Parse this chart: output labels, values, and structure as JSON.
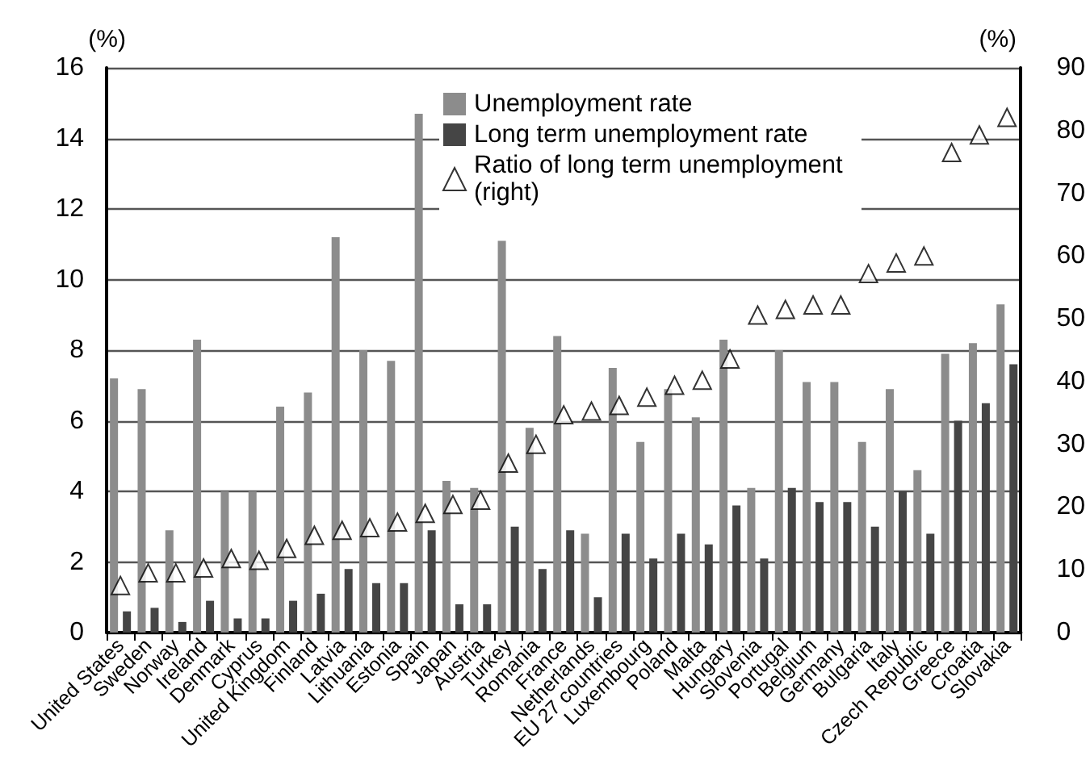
{
  "chart_data": {
    "type": "bar",
    "ylabel": "(%)",
    "y2label": "(%)",
    "categories": [
      "United States",
      "Sweden",
      "Norway",
      "Ireland",
      "Denmark",
      "Cyprus",
      "United Kingdom",
      "Finland",
      "Latvia",
      "Lithuania",
      "Estonia",
      "Spain",
      "Japan",
      "Austria",
      "Turkey",
      "Romania",
      "France",
      "Netherlands",
      "EU 27 countries",
      "Luxembourg",
      "Poland",
      "Malta",
      "Hungary",
      "Slovenia",
      "Portugal",
      "Belgium",
      "Germany",
      "Bulgaria",
      "Italy",
      "Czech Republic",
      "Greece",
      "Croatia",
      "Slovakia"
    ],
    "series": [
      {
        "name": "Unemployment rate",
        "color": "#8c8c8c",
        "type": "bar",
        "values": [
          7.2,
          6.9,
          2.9,
          8.3,
          4.0,
          4.0,
          6.4,
          6.8,
          11.2,
          8.0,
          7.7,
          14.7,
          4.3,
          4.1,
          11.1,
          5.8,
          8.4,
          2.8,
          7.5,
          5.4,
          6.9,
          6.1,
          8.3,
          4.1,
          8.0,
          7.1,
          7.1,
          5.4,
          6.9,
          4.6,
          7.9,
          8.2,
          9.3
        ]
      },
      {
        "name": "Long term unemployment rate",
        "color": "#454545",
        "type": "bar",
        "values": [
          0.6,
          0.7,
          0.3,
          0.9,
          0.4,
          0.4,
          0.9,
          1.1,
          1.8,
          1.4,
          1.4,
          2.9,
          0.8,
          0.8,
          3.0,
          1.8,
          2.9,
          1.0,
          2.8,
          2.1,
          2.8,
          2.5,
          3.6,
          2.1,
          4.1,
          3.7,
          3.7,
          3.0,
          4.0,
          2.8,
          6.0,
          6.5,
          7.6
        ]
      },
      {
        "name": "Ratio of long term unemployment (right)",
        "color": "#ffffff",
        "type": "scatter",
        "axis": "y2",
        "marker": "triangle",
        "values": [
          7.5,
          9.5,
          9.5,
          10.3,
          11.8,
          11.5,
          13.4,
          15.5,
          16.3,
          16.7,
          17.6,
          19.0,
          20.4,
          21.1,
          27.0,
          30.0,
          34.7,
          35.3,
          36.2,
          37.5,
          39.4,
          40.2,
          43.6,
          50.6,
          51.5,
          52.2,
          52.2,
          57.2,
          58.9,
          60.0,
          76.5,
          79.3,
          82.1
        ]
      }
    ],
    "ylim": [
      0,
      16
    ],
    "yticks": [
      0,
      2,
      4,
      6,
      8,
      10,
      12,
      14,
      16
    ],
    "y2lim": [
      0,
      90
    ],
    "y2ticks": [
      0,
      10,
      20,
      30,
      40,
      50,
      60,
      70,
      80,
      90
    ],
    "grid": "y",
    "legend": "top"
  }
}
